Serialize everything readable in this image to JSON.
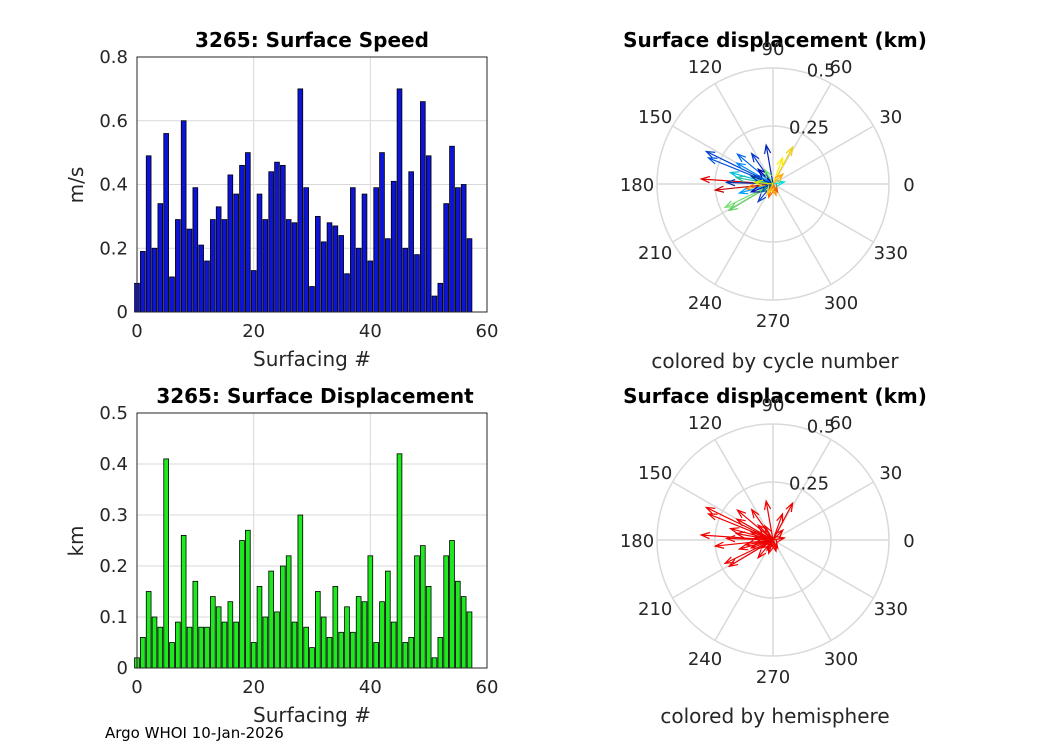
{
  "footer": "Argo WHOI 10-Jan-2026",
  "chart_data": [
    {
      "type": "bar",
      "title": "3265: Surface Speed",
      "xlabel": "Surfacing #",
      "ylabel": "m/s",
      "xlim": [
        0,
        60
      ],
      "ylim": [
        0,
        0.8
      ],
      "xticks": [
        "0",
        "20",
        "40",
        "60"
      ],
      "yticks": [
        "0",
        "0.2",
        "0.4",
        "0.6",
        "0.8"
      ],
      "color": "#0d14d6",
      "x": [
        0,
        1,
        2,
        3,
        4,
        5,
        6,
        7,
        8,
        9,
        10,
        11,
        12,
        13,
        14,
        15,
        16,
        17,
        18,
        19,
        20,
        21,
        22,
        23,
        24,
        25,
        26,
        27,
        28,
        29,
        30,
        31,
        32,
        33,
        34,
        35,
        36,
        37,
        38,
        39,
        40,
        41,
        42,
        43,
        44,
        45,
        46,
        47,
        48,
        49,
        50,
        51,
        52,
        53,
        54,
        55,
        56,
        57
      ],
      "values": [
        0.09,
        0.19,
        0.49,
        0.2,
        0.34,
        0.56,
        0.11,
        0.29,
        0.6,
        0.26,
        0.39,
        0.21,
        0.16,
        0.29,
        0.33,
        0.29,
        0.43,
        0.37,
        0.46,
        0.5,
        0.13,
        0.37,
        0.29,
        0.44,
        0.47,
        0.46,
        0.29,
        0.28,
        0.7,
        0.39,
        0.08,
        0.3,
        0.22,
        0.28,
        0.27,
        0.24,
        0.12,
        0.39,
        0.2,
        0.37,
        0.16,
        0.39,
        0.5,
        0.23,
        0.41,
        0.7,
        0.2,
        0.44,
        0.18,
        0.66,
        0.49,
        0.05,
        0.09,
        0.34,
        0.52,
        0.39,
        0.4,
        0.23
      ]
    },
    {
      "type": "bar",
      "title": "3265: Surface Displacement",
      "xlabel": "Surfacing #",
      "ylabel": "km",
      "xlim": [
        0,
        60
      ],
      "ylim": [
        0,
        0.5
      ],
      "xticks": [
        "0",
        "20",
        "40",
        "60"
      ],
      "yticks": [
        "0",
        "0.1",
        "0.2",
        "0.3",
        "0.4",
        "0.5"
      ],
      "color": "#1ee81e",
      "x": [
        0,
        1,
        2,
        3,
        4,
        5,
        6,
        7,
        8,
        9,
        10,
        11,
        12,
        13,
        14,
        15,
        16,
        17,
        18,
        19,
        20,
        21,
        22,
        23,
        24,
        25,
        26,
        27,
        28,
        29,
        30,
        31,
        32,
        33,
        34,
        35,
        36,
        37,
        38,
        39,
        40,
        41,
        42,
        43,
        44,
        45,
        46,
        47,
        48,
        49,
        50,
        51,
        52,
        53,
        54,
        55,
        56,
        57
      ],
      "values": [
        0.02,
        0.06,
        0.15,
        0.1,
        0.08,
        0.41,
        0.05,
        0.09,
        0.26,
        0.08,
        0.17,
        0.08,
        0.08,
        0.14,
        0.12,
        0.09,
        0.13,
        0.09,
        0.25,
        0.27,
        0.05,
        0.16,
        0.1,
        0.19,
        0.11,
        0.2,
        0.22,
        0.09,
        0.3,
        0.08,
        0.04,
        0.15,
        0.1,
        0.06,
        0.16,
        0.07,
        0.12,
        0.07,
        0.14,
        0.13,
        0.22,
        0.05,
        0.13,
        0.19,
        0.09,
        0.42,
        0.05,
        0.06,
        0.22,
        0.24,
        0.16,
        0.02,
        0.06,
        0.22,
        0.25,
        0.17,
        0.14,
        0.11
      ]
    },
    {
      "type": "polar",
      "title": "Surface displacement (km)",
      "caption": "colored by cycle number",
      "rlim": [
        0,
        0.5
      ],
      "rticks": [
        "0.25",
        "0.5"
      ],
      "angle_ticks": [
        "0",
        "30",
        "60",
        "90",
        "120",
        "150",
        "180",
        "210",
        "240",
        "270",
        "300",
        "330"
      ],
      "arrows": [
        {
          "angle": 154,
          "r": 0.32,
          "color": "#0044cc"
        },
        {
          "angle": 158,
          "r": 0.3,
          "color": "#0055dd"
        },
        {
          "angle": 176,
          "r": 0.31,
          "color": "#e00000"
        },
        {
          "angle": 186,
          "r": 0.25,
          "color": "#c00000"
        },
        {
          "angle": 206,
          "r": 0.23,
          "color": "#70e070"
        },
        {
          "angle": 211,
          "r": 0.22,
          "color": "#60d060"
        },
        {
          "angle": 62,
          "r": 0.18,
          "color": "#f0d000"
        },
        {
          "angle": 70,
          "r": 0.12,
          "color": "#ffee00"
        },
        {
          "angle": 100,
          "r": 0.17,
          "color": "#0022bb"
        },
        {
          "angle": 125,
          "r": 0.16,
          "color": "#0033cc"
        },
        {
          "angle": 140,
          "r": 0.2,
          "color": "#0066ee"
        },
        {
          "angle": 150,
          "r": 0.18,
          "color": "#0088ff"
        },
        {
          "angle": 165,
          "r": 0.19,
          "color": "#00bbdd"
        },
        {
          "angle": 170,
          "r": 0.16,
          "color": "#20c0a0"
        },
        {
          "angle": 178,
          "r": 0.2,
          "color": "#0033aa"
        },
        {
          "angle": 190,
          "r": 0.12,
          "color": "#ff8800"
        },
        {
          "angle": 195,
          "r": 0.15,
          "color": "#00a0ff"
        },
        {
          "angle": 200,
          "r": 0.1,
          "color": "#0011aa"
        },
        {
          "angle": 230,
          "r": 0.1,
          "color": "#1144cc"
        },
        {
          "angle": 252,
          "r": 0.06,
          "color": "#ff6600"
        },
        {
          "angle": 285,
          "r": 0.05,
          "color": "#ff9900"
        },
        {
          "angle": 300,
          "r": 0.04,
          "color": "#e06000"
        },
        {
          "angle": 10,
          "r": 0.05,
          "color": "#00e0e0"
        },
        {
          "angle": 45,
          "r": 0.06,
          "color": "#ffaa00"
        },
        {
          "angle": 135,
          "r": 0.09,
          "color": "#0000aa"
        },
        {
          "angle": 160,
          "r": 0.1,
          "color": "#003399"
        },
        {
          "angle": 120,
          "r": 0.07,
          "color": "#66dd66"
        },
        {
          "angle": 215,
          "r": 0.06,
          "color": "#0066aa"
        },
        {
          "angle": 240,
          "r": 0.05,
          "color": "#ffcc00"
        },
        {
          "angle": 175,
          "r": 0.08,
          "color": "#e0e000"
        }
      ]
    },
    {
      "type": "polar",
      "title": "Surface displacement (km)",
      "caption": "colored by hemisphere",
      "rlim": [
        0,
        0.5
      ],
      "rticks": [
        "0.25",
        "0.5"
      ],
      "angle_ticks": [
        "0",
        "30",
        "60",
        "90",
        "120",
        "150",
        "180",
        "210",
        "240",
        "270",
        "300",
        "330"
      ],
      "color": "#ee0000",
      "arrows": [
        {
          "angle": 154,
          "r": 0.32
        },
        {
          "angle": 158,
          "r": 0.3
        },
        {
          "angle": 176,
          "r": 0.31
        },
        {
          "angle": 186,
          "r": 0.25
        },
        {
          "angle": 206,
          "r": 0.23
        },
        {
          "angle": 211,
          "r": 0.22
        },
        {
          "angle": 62,
          "r": 0.18
        },
        {
          "angle": 70,
          "r": 0.12
        },
        {
          "angle": 100,
          "r": 0.17
        },
        {
          "angle": 125,
          "r": 0.16
        },
        {
          "angle": 140,
          "r": 0.2
        },
        {
          "angle": 150,
          "r": 0.18
        },
        {
          "angle": 165,
          "r": 0.19
        },
        {
          "angle": 170,
          "r": 0.16
        },
        {
          "angle": 178,
          "r": 0.2
        },
        {
          "angle": 190,
          "r": 0.12
        },
        {
          "angle": 195,
          "r": 0.15
        },
        {
          "angle": 200,
          "r": 0.1
        },
        {
          "angle": 230,
          "r": 0.1
        },
        {
          "angle": 252,
          "r": 0.06
        },
        {
          "angle": 285,
          "r": 0.05
        },
        {
          "angle": 300,
          "r": 0.04
        },
        {
          "angle": 10,
          "r": 0.05
        },
        {
          "angle": 45,
          "r": 0.06
        },
        {
          "angle": 135,
          "r": 0.09
        },
        {
          "angle": 160,
          "r": 0.1
        },
        {
          "angle": 120,
          "r": 0.07
        },
        {
          "angle": 215,
          "r": 0.06
        },
        {
          "angle": 240,
          "r": 0.05
        },
        {
          "angle": 175,
          "r": 0.08
        }
      ]
    }
  ]
}
